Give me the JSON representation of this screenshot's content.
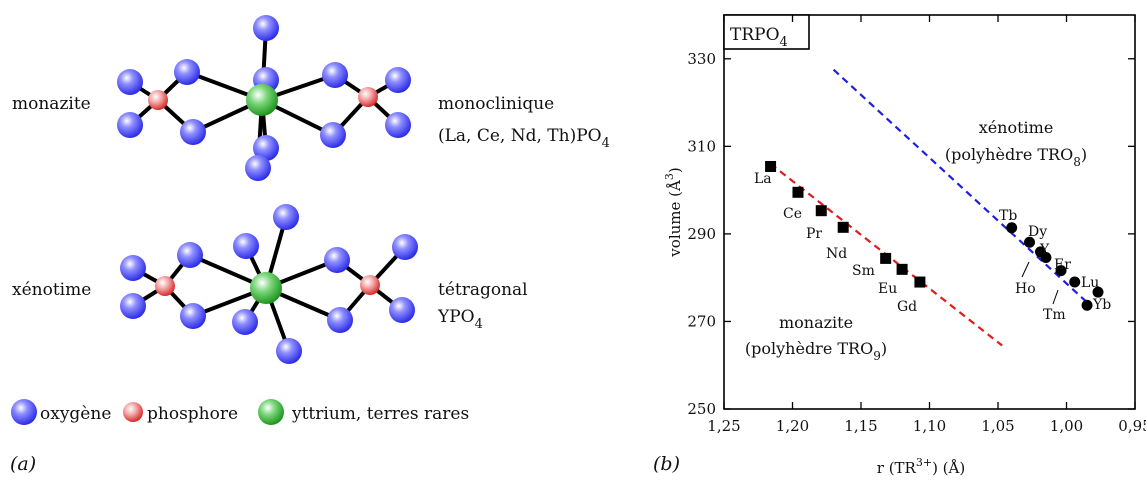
{
  "left_panel": {
    "panel_label": "(a)",
    "structure1": {
      "name": "monazite",
      "system": "monoclinique",
      "formula_main": "(La, Ce, Nd, Th)PO",
      "formula_sub": "4"
    },
    "structure2": {
      "name": "xénotime",
      "system": "tétragonal",
      "formula_main": "YPO",
      "formula_sub": "4"
    },
    "legend": [
      {
        "label": "oxygène",
        "color": "#2a2af0"
      },
      {
        "label": "phosphore",
        "color": "#e03030"
      },
      {
        "label": "yttrium, terres rares",
        "color": "#1f9e1f"
      }
    ]
  },
  "chart_data": {
    "type": "scatter",
    "panel_label": "(b)",
    "title_box": {
      "main": "TRPO",
      "sub": "4"
    },
    "xlabel": {
      "pre": "r (TR",
      "sup": "3+",
      "post": ") (Å)"
    },
    "ylabel": {
      "pre": "volume (Å",
      "sup": "3",
      "post": ")"
    },
    "xlim": [
      1.25,
      0.95
    ],
    "ylim": [
      250,
      340
    ],
    "x_ticks": [
      "1,25",
      "1,20",
      "1,15",
      "1,10",
      "1,05",
      "1,00",
      "0,95"
    ],
    "x_tick_values": [
      1.25,
      1.2,
      1.15,
      1.1,
      1.05,
      1.0,
      0.95
    ],
    "y_ticks": [
      "250",
      "270",
      "290",
      "310",
      "330"
    ],
    "y_tick_values": [
      250,
      270,
      290,
      310,
      330
    ],
    "series": [
      {
        "name": "monazite",
        "marker": "square",
        "color": "#000000",
        "points": [
          {
            "label": "La",
            "x": 1.216,
            "y": 305.4
          },
          {
            "label": "Ce",
            "x": 1.196,
            "y": 299.5
          },
          {
            "label": "Pr",
            "x": 1.179,
            "y": 295.3
          },
          {
            "label": "Nd",
            "x": 1.163,
            "y": 291.5
          },
          {
            "label": "Sm",
            "x": 1.132,
            "y": 284.4
          },
          {
            "label": "Eu",
            "x": 1.12,
            "y": 281.9
          },
          {
            "label": "Gd",
            "x": 1.107,
            "y": 279.0
          }
        ]
      },
      {
        "name": "xénotime",
        "marker": "circle",
        "color": "#000000",
        "points": [
          {
            "label": "Tb",
            "x": 1.04,
            "y": 291.4
          },
          {
            "label": "Dy",
            "x": 1.027,
            "y": 288.1
          },
          {
            "label": "Y",
            "x": 1.019,
            "y": 285.9
          },
          {
            "label": "Ho",
            "x": 1.015,
            "y": 284.6
          },
          {
            "label": "Er",
            "x": 1.004,
            "y": 281.6
          },
          {
            "label": "Tm",
            "x": 0.994,
            "y": 279.0
          },
          {
            "label": "Lu",
            "x": 0.977,
            "y": 276.7
          },
          {
            "label": "Yb",
            "x": 0.985,
            "y": 273.7
          }
        ]
      }
    ],
    "trend_lines": [
      {
        "name": "monazite",
        "color": "#e41a1c",
        "from": [
          1.216,
          306.0
        ],
        "to": [
          1.047,
          264.5
        ]
      },
      {
        "name": "xénotime",
        "color": "#1f1fe0",
        "from": [
          1.17,
          327.5
        ],
        "to": [
          0.982,
          273.5
        ]
      }
    ],
    "annotations": [
      {
        "line1": "xénotime",
        "line2_main": "(polyhèdre TRO",
        "line2_sub": "8",
        "line2_end": ")",
        "color": "#1f1fe0"
      },
      {
        "line1": "monazite",
        "line2_main": "(polyhèdre TRO",
        "line2_sub": "9",
        "line2_end": ")",
        "color": "#e41a1c"
      }
    ]
  }
}
